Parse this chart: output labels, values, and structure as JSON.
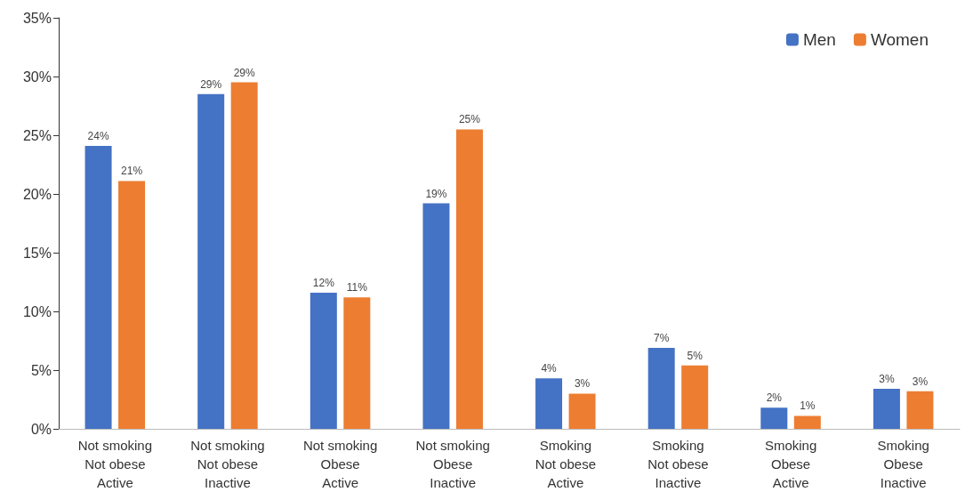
{
  "chart_data": {
    "type": "bar",
    "categories": [
      "Not smoking\nNot obese\nActive",
      "Not smoking\nNot obese\nInactive",
      "Not smoking\nObese\nActive",
      "Not smoking\nObese\nInactive",
      "Smoking\nNot obese\nActive",
      "Smoking\nNot obese\nInactive",
      "Smoking\nObese\nActive",
      "Smoking\nObese\nInactive"
    ],
    "series": [
      {
        "name": "Men",
        "color": "#4472c4",
        "values": [
          24.1,
          28.5,
          11.6,
          19.2,
          4.3,
          6.9,
          1.8,
          3.4
        ],
        "value_labels": [
          "24%",
          "29%",
          "12%",
          "19%",
          "4%",
          "7%",
          "2%",
          "3%"
        ]
      },
      {
        "name": "Women",
        "color": "#ed7d31",
        "values": [
          21.1,
          29.5,
          11.2,
          25.5,
          3.0,
          5.4,
          1.1,
          3.2
        ],
        "value_labels": [
          "21%",
          "29%",
          "11%",
          "25%",
          "3%",
          "5%",
          "1%",
          "3%"
        ]
      }
    ],
    "ylim": [
      0,
      35
    ],
    "yticks": [
      {
        "value": 0,
        "label": "0%"
      },
      {
        "value": 5,
        "label": "5%"
      },
      {
        "value": 10,
        "label": "10%"
      },
      {
        "value": 15,
        "label": "15%"
      },
      {
        "value": 20,
        "label": "20%"
      },
      {
        "value": 25,
        "label": "25%"
      },
      {
        "value": 30,
        "label": "30%"
      },
      {
        "value": 35,
        "label": "35%"
      }
    ],
    "grid": false,
    "legend": "top right"
  }
}
